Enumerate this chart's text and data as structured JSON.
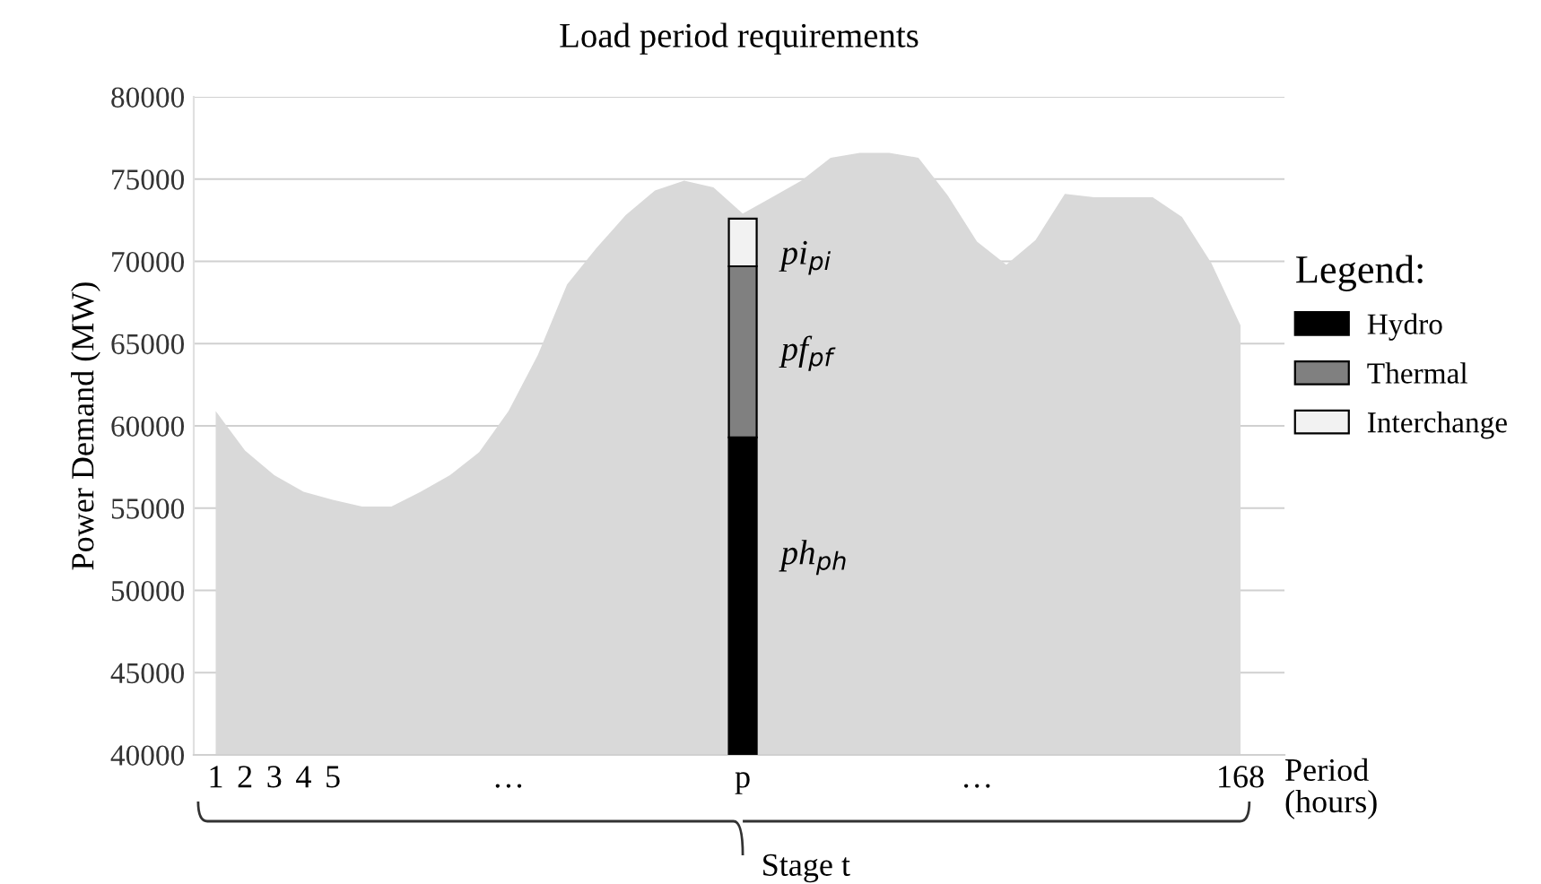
{
  "chart_data": {
    "type": "area",
    "title": "Load period requirements",
    "ylabel": "Power Demand (MW)",
    "xlabel": "Period\n(hours)",
    "categories": [
      "1",
      "2",
      "3",
      "4",
      "5",
      null,
      null,
      null,
      null,
      null,
      "…",
      null,
      null,
      null,
      null,
      null,
      null,
      null,
      "p",
      null,
      null,
      null,
      null,
      null,
      null,
      null,
      "…",
      null,
      null,
      null,
      null,
      null,
      null,
      null,
      null,
      "168"
    ],
    "series": [
      {
        "color": "#d9d9d9",
        "values": [
          60900,
          58500,
          57000,
          56000,
          55500,
          55100,
          55100,
          56000,
          57000,
          58400,
          60900,
          64300,
          68600,
          70800,
          72800,
          74300,
          74900,
          74500,
          72900,
          73900,
          74900,
          76300,
          76600,
          76600,
          76300,
          74000,
          71200,
          69800,
          71300,
          74100,
          73900,
          73900,
          73900,
          72700,
          69900,
          66100
        ]
      },
      {
        "type": "bar",
        "name": "Hydro",
        "color": "#000000",
        "base": [
          null,
          null,
          null,
          null,
          null,
          null,
          null,
          null,
          null,
          null,
          null,
          null,
          null,
          null,
          null,
          null,
          null,
          null,
          40000,
          null,
          null,
          null,
          null,
          null,
          null,
          null,
          null,
          null,
          null,
          null,
          null,
          null,
          null,
          null,
          null,
          null
        ],
        "values": [
          null,
          null,
          null,
          null,
          null,
          null,
          null,
          null,
          null,
          null,
          null,
          null,
          null,
          null,
          null,
          null,
          null,
          null,
          19300,
          null,
          null,
          null,
          null,
          null,
          null,
          null,
          null,
          null,
          null,
          null,
          null,
          null,
          null,
          null,
          null,
          null
        ]
      },
      {
        "type": "bar",
        "name": "Thermal",
        "color": "#808080",
        "base": [
          null,
          null,
          null,
          null,
          null,
          null,
          null,
          null,
          null,
          null,
          null,
          null,
          null,
          null,
          null,
          null,
          null,
          null,
          59300,
          null,
          null,
          null,
          null,
          null,
          null,
          null,
          null,
          null,
          null,
          null,
          null,
          null,
          null,
          null,
          null,
          null
        ],
        "values": [
          null,
          null,
          null,
          null,
          null,
          null,
          null,
          null,
          null,
          null,
          null,
          null,
          null,
          null,
          null,
          null,
          null,
          null,
          10400,
          null,
          null,
          null,
          null,
          null,
          null,
          null,
          null,
          null,
          null,
          null,
          null,
          null,
          null,
          null,
          null,
          null
        ]
      },
      {
        "type": "bar",
        "name": "Interchange",
        "color": "#f2f2f2",
        "base": [
          null,
          null,
          null,
          null,
          null,
          null,
          null,
          null,
          null,
          null,
          null,
          null,
          null,
          null,
          null,
          null,
          null,
          null,
          69700,
          null,
          null,
          null,
          null,
          null,
          null,
          null,
          null,
          null,
          null,
          null,
          null,
          null,
          null,
          null,
          null,
          null
        ],
        "values": [
          null,
          null,
          null,
          null,
          null,
          null,
          null,
          null,
          null,
          null,
          null,
          null,
          null,
          null,
          null,
          null,
          null,
          null,
          2900,
          null,
          null,
          null,
          null,
          null,
          null,
          null,
          null,
          null,
          null,
          null,
          null,
          null,
          null,
          null,
          null,
          null
        ]
      }
    ],
    "ylim": [
      40000,
      80000
    ],
    "yticks": [
      40000,
      45000,
      50000,
      55000,
      60000,
      65000,
      70000,
      75000,
      80000
    ],
    "grid": "y",
    "legend": "right",
    "legend_title": "Legend:",
    "annotations": [
      "pi$_{pi}$",
      "pf$_{pf}$",
      "ph$_{ph}$",
      "Stage t"
    ]
  }
}
